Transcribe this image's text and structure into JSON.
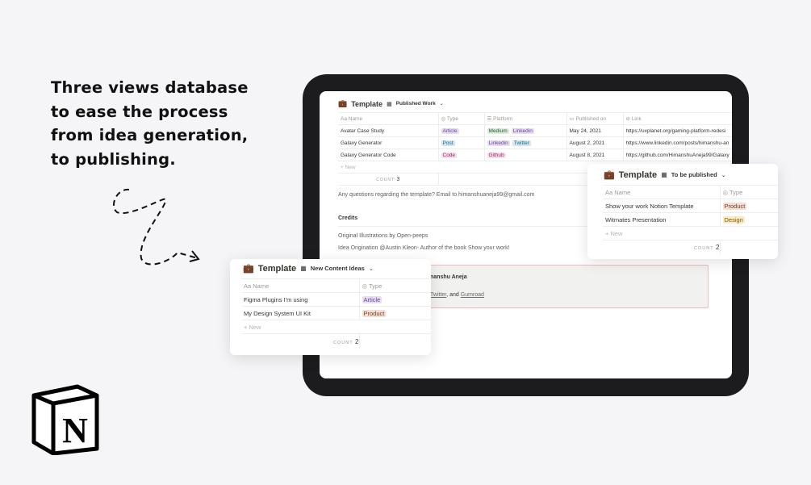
{
  "headline": [
    "Three views database",
    "to ease the process",
    "from idea generation,",
    "to publishing."
  ],
  "colors": {
    "article": "#e8deee",
    "post": "#d3e5ef",
    "code": "#f5e0e9",
    "medium": "#dbeddb",
    "linkedin": "#e8deee",
    "twitter": "#d3e5ef",
    "github": "#f5e0e9",
    "product": "#f4dfd7",
    "design": "#fbecc6"
  },
  "main": {
    "title": "Template",
    "view": "Published Work",
    "columns": [
      "Name",
      "Type",
      "Platform",
      "Published on",
      "Link"
    ],
    "rows": [
      {
        "name": "Avatar Case Study",
        "type": "Article",
        "platform": [
          "Medium",
          "Linkedin"
        ],
        "date": "May 24, 2021",
        "link": "https://uxplanet.org/gaming-platform-redesi"
      },
      {
        "name": "Galaxy Generator",
        "type": "Post",
        "platform": [
          "Linkedin",
          "Twitter"
        ],
        "date": "August 2, 2021",
        "link": "https://www.linkedin.com/posts/himanshu-an"
      },
      {
        "name": "Galaxy Generator Code",
        "type": "Code",
        "platform": [
          "Github"
        ],
        "date": "August 8, 2021",
        "link": "https://github.com/HimanshuAneja99/Galaxy"
      }
    ],
    "new": "+ New",
    "count_label": "COUNT",
    "count": "3",
    "email_line": "Any questions regarding the template? Email to himanshuaneja99@gmail.com",
    "credits": "Credits",
    "credit1": "Original Illustrations by Open-peeps",
    "credit2": "Idea Origination @Austin Kleon- Author of the book Show your work!",
    "callout_name": "nanshu Aneja",
    "callout_links": [
      "Twitter",
      ", and ",
      "Gumroad"
    ]
  },
  "publish": {
    "title": "Template",
    "view": "To be published",
    "columns": [
      "Name",
      "Type"
    ],
    "rows": [
      {
        "name": "Show your work Notion Template",
        "type": "Product"
      },
      {
        "name": "Witmates Presentation",
        "type": "Design"
      }
    ],
    "new": "+ New",
    "count_label": "COUNT",
    "count": "2"
  },
  "ideas": {
    "title": "Template",
    "view": "New Content Ideas",
    "columns": [
      "Name",
      "Type"
    ],
    "rows": [
      {
        "name": "Figma Plugins I'm using",
        "type": "Article"
      },
      {
        "name": "My Design System UI Kit",
        "type": "Product"
      }
    ],
    "new": "+ New",
    "count_label": "COUNT",
    "count": "2"
  }
}
